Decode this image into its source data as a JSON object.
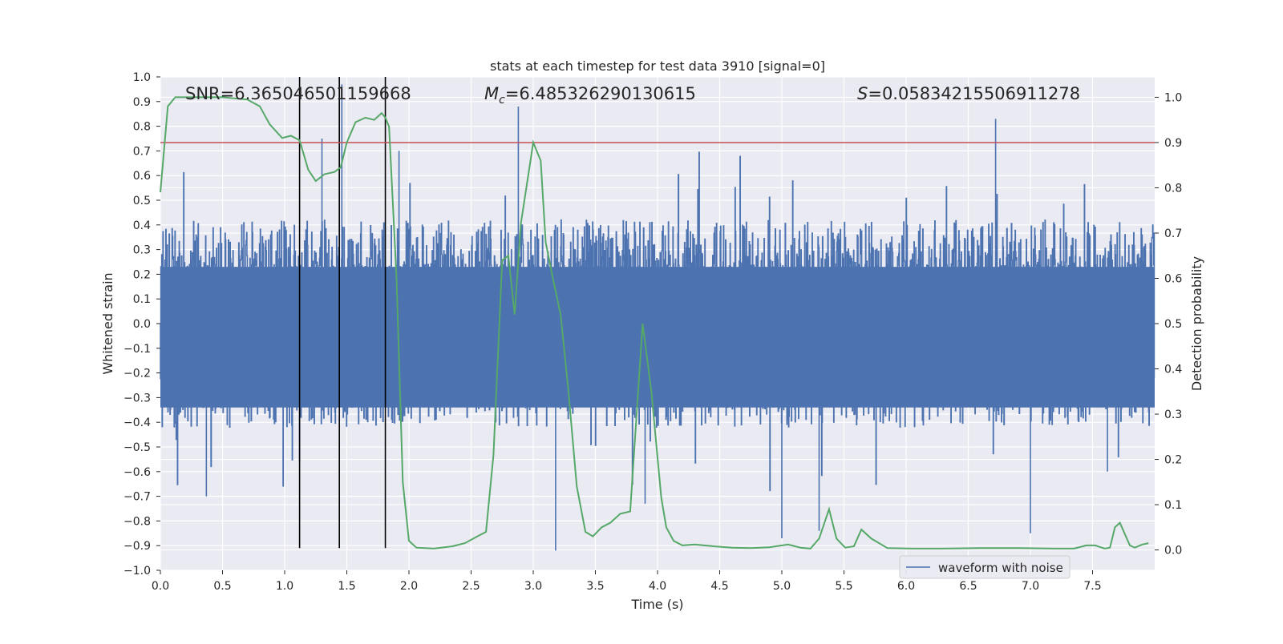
{
  "chart_data": {
    "type": "line",
    "title": "stats at each timestep for test data 3910 [signal=0]",
    "xlabel": "Time (s)",
    "ylabel": "Whitened strain",
    "ylabel_right": "Detection probability",
    "xlim": [
      0.0,
      8.0
    ],
    "ylim": [
      -1.0,
      1.0
    ],
    "ylim_right": [
      -0.045,
      1.045
    ],
    "grid": true,
    "legend_position": "lower-right",
    "x_ticks": [
      0.0,
      0.5,
      1.0,
      1.5,
      2.0,
      2.5,
      3.0,
      3.5,
      4.0,
      4.5,
      5.0,
      5.5,
      6.0,
      6.5,
      7.0,
      7.5
    ],
    "x_tick_labels": [
      "0.0",
      "0.5",
      "1.0",
      "1.5",
      "2.0",
      "2.5",
      "3.0",
      "3.5",
      "4.0",
      "4.5",
      "5.0",
      "5.5",
      "6.0",
      "6.5",
      "7.0",
      "7.5"
    ],
    "y_ticks": [
      -1.0,
      -0.9,
      -0.8,
      -0.7,
      -0.6,
      -0.5,
      -0.4,
      -0.3,
      -0.2,
      -0.1,
      0.0,
      0.1,
      0.2,
      0.3,
      0.4,
      0.5,
      0.6,
      0.7,
      0.8,
      0.9,
      1.0
    ],
    "y_tick_labels": [
      "−1.0",
      "−0.9",
      "−0.8",
      "−0.7",
      "−0.6",
      "−0.5",
      "−0.4",
      "−0.3",
      "−0.2",
      "−0.1",
      "0.0",
      "0.1",
      "0.2",
      "0.3",
      "0.4",
      "0.5",
      "0.6",
      "0.7",
      "0.8",
      "0.9",
      "1.0"
    ],
    "y2_ticks": [
      0.0,
      0.1,
      0.2,
      0.3,
      0.4,
      0.5,
      0.6,
      0.7,
      0.8,
      0.9,
      1.0
    ],
    "y2_tick_labels": [
      "0.0",
      "0.1",
      "0.2",
      "0.3",
      "0.4",
      "0.5",
      "0.6",
      "0.7",
      "0.8",
      "0.9",
      "1.0"
    ],
    "annotations": {
      "snr": "SNR=6.365046501159668",
      "mc_symbol": "M",
      "mc_sub": "c",
      "mc_value": "=6.485326290130615",
      "s_symbol": "S",
      "s_value": "=0.05834215506911278"
    },
    "vertical_lines_x": [
      1.12,
      1.44,
      1.81
    ],
    "vertical_lines_y_range": [
      -0.91,
      1.0
    ],
    "threshold_y": 0.9,
    "series": [
      {
        "name": "waveform with noise",
        "axis": "left",
        "color": "#4c72b0",
        "style": "noise-waveform",
        "notable_spikes": [
          {
            "x": 0.37,
            "y": -0.7
          },
          {
            "x": 1.3,
            "y": 0.75
          },
          {
            "x": 1.44,
            "y": 1.0
          },
          {
            "x": 1.46,
            "y": 0.97
          },
          {
            "x": 1.92,
            "y": 0.7
          },
          {
            "x": 2.88,
            "y": 0.88
          },
          {
            "x": 3.18,
            "y": -0.92
          },
          {
            "x": 3.9,
            "y": -0.73
          },
          {
            "x": 5.0,
            "y": -0.87
          },
          {
            "x": 5.3,
            "y": -0.84
          },
          {
            "x": 6.72,
            "y": 0.83
          },
          {
            "x": 7.0,
            "y": -0.85
          },
          {
            "x": 7.62,
            "y": -0.6
          },
          {
            "x": 1.12,
            "y": -0.56
          }
        ]
      },
      {
        "name": "detection probability",
        "axis": "right",
        "color": "#55a868",
        "x": [
          0.0,
          0.06,
          0.12,
          0.3,
          0.5,
          0.7,
          0.8,
          0.88,
          0.98,
          1.05,
          1.12,
          1.19,
          1.25,
          1.32,
          1.4,
          1.45,
          1.5,
          1.57,
          1.65,
          1.72,
          1.78,
          1.81,
          1.84,
          1.9,
          1.95,
          2.0,
          2.06,
          2.2,
          2.35,
          2.45,
          2.55,
          2.62,
          2.68,
          2.75,
          2.8,
          2.85,
          2.9,
          3.0,
          3.06,
          3.1,
          3.15,
          3.22,
          3.28,
          3.35,
          3.42,
          3.48,
          3.55,
          3.62,
          3.7,
          3.78,
          3.88,
          3.95,
          4.03,
          4.07,
          4.13,
          4.2,
          4.3,
          4.45,
          4.6,
          4.75,
          4.9,
          5.05,
          5.15,
          5.23,
          5.3,
          5.38,
          5.44,
          5.51,
          5.58,
          5.64,
          5.72,
          5.85,
          6.05,
          6.3,
          6.6,
          6.9,
          7.2,
          7.35,
          7.45,
          7.52,
          7.6,
          7.64,
          7.68,
          7.72,
          7.8,
          7.84,
          7.9,
          7.95
        ],
        "y": [
          0.79,
          0.98,
          1.0,
          1.0,
          1.0,
          0.995,
          0.98,
          0.94,
          0.91,
          0.915,
          0.905,
          0.84,
          0.815,
          0.83,
          0.835,
          0.845,
          0.9,
          0.945,
          0.955,
          0.95,
          0.965,
          0.955,
          0.935,
          0.6,
          0.15,
          0.02,
          0.005,
          0.003,
          0.008,
          0.015,
          0.03,
          0.04,
          0.21,
          0.64,
          0.65,
          0.52,
          0.72,
          0.9,
          0.86,
          0.68,
          0.61,
          0.52,
          0.36,
          0.14,
          0.04,
          0.03,
          0.05,
          0.06,
          0.08,
          0.085,
          0.5,
          0.35,
          0.115,
          0.05,
          0.02,
          0.01,
          0.012,
          0.008,
          0.005,
          0.004,
          0.006,
          0.012,
          0.005,
          0.003,
          0.025,
          0.09,
          0.025,
          0.005,
          0.008,
          0.045,
          0.025,
          0.004,
          0.003,
          0.003,
          0.004,
          0.004,
          0.003,
          0.003,
          0.01,
          0.01,
          0.003,
          0.005,
          0.05,
          0.06,
          0.01,
          0.005,
          0.012,
          0.015
        ]
      },
      {
        "name": "threshold",
        "axis": "right",
        "color": "#c44e52"
      }
    ]
  }
}
